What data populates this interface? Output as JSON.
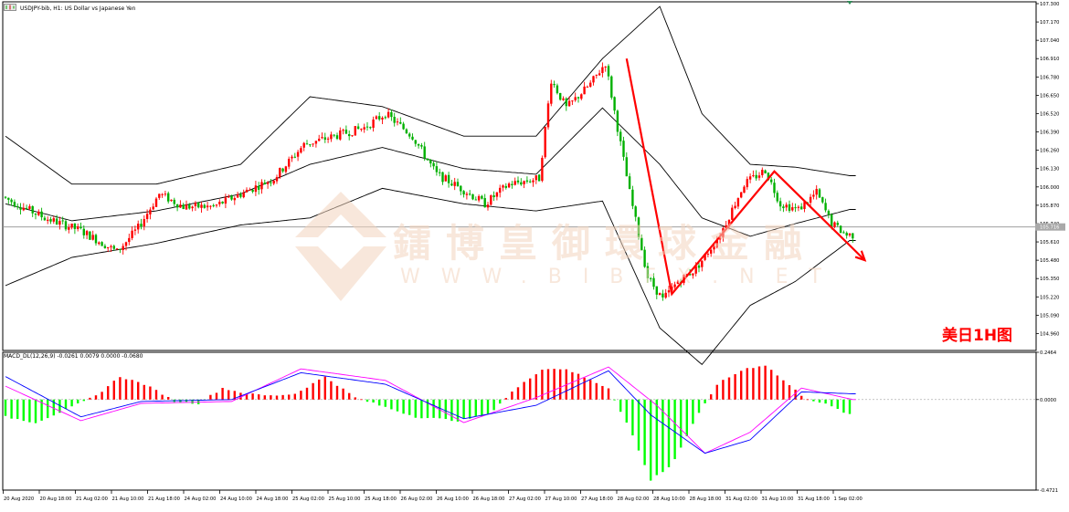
{
  "window": {
    "main_title": "USDJPY-bib, H1:  US Dollar vs Japanese Yen",
    "indicator_title": "MACD_DL(12,26,9) -0.0261 0.0079 0.0000 -0.0680",
    "annotation": "美日1H图"
  },
  "watermark": {
    "chinese": "鐳博皇御環球金融",
    "english": "WWW.BIBFX.NET"
  },
  "colors": {
    "bull_candle": "#ff0000",
    "bear_candle": "#00b000",
    "bollinger": "#000000",
    "macd_positive": "#ff0000",
    "macd_negative": "#00ff00",
    "signal_line": "#ff00ff",
    "macd_line": "#0000ff",
    "trend_arrows": "#ff0000",
    "bid_line": "#909090"
  },
  "chart_data": [
    {
      "type": "candlestick",
      "title": "USDJPY-bib, H1:  US Dollar vs Japanese Yen",
      "overlays": [
        "Bollinger Bands"
      ],
      "ylim": [
        104.84,
        107.3
      ],
      "current_price": 105.716,
      "y_ticks": [
        "107.300",
        "107.170",
        "107.040",
        "106.910",
        "106.780",
        "106.650",
        "106.520",
        "106.390",
        "106.260",
        "106.130",
        "106.000",
        "105.870",
        "105.740",
        "105.610",
        "105.480",
        "105.350",
        "105.220",
        "105.090",
        "104.960"
      ],
      "x_ticks": [
        "20 Aug 2020",
        "20 Aug 18:00",
        "21 Aug 02:00",
        "21 Aug 10:00",
        "21 Aug 18:00",
        "24 Aug 02:00",
        "24 Aug 10:00",
        "24 Aug 18:00",
        "25 Aug 02:00",
        "25 Aug 10:00",
        "25 Aug 18:00",
        "26 Aug 02:00",
        "26 Aug 10:00",
        "26 Aug 18:00",
        "27 Aug 02:00",
        "27 Aug 10:00",
        "27 Aug 18:00",
        "28 Aug 02:00",
        "28 Aug 10:00",
        "28 Aug 18:00",
        "31 Aug 02:00",
        "31 Aug 10:00",
        "31 Aug 18:00",
        "1 Sep 02:00"
      ],
      "close_path": [
        [
          0,
          105.93
        ],
        [
          14,
          105.78
        ],
        [
          26,
          105.69
        ],
        [
          38,
          105.54
        ],
        [
          45,
          105.71
        ],
        [
          52,
          105.95
        ],
        [
          60,
          105.86
        ],
        [
          70,
          105.86
        ],
        [
          80,
          105.96
        ],
        [
          90,
          106.06
        ],
        [
          100,
          106.3
        ],
        [
          110,
          106.36
        ],
        [
          120,
          106.42
        ],
        [
          127,
          106.52
        ],
        [
          136,
          106.36
        ],
        [
          144,
          106.09
        ],
        [
          152,
          105.99
        ],
        [
          160,
          105.88
        ],
        [
          168,
          106.02
        ],
        [
          178,
          106.06
        ],
        [
          182,
          106.76
        ],
        [
          187,
          106.56
        ],
        [
          195,
          106.73
        ],
        [
          200,
          106.88
        ],
        [
          208,
          105.96
        ],
        [
          214,
          105.36
        ],
        [
          219,
          105.2
        ],
        [
          224,
          105.33
        ],
        [
          230,
          105.42
        ],
        [
          238,
          105.66
        ],
        [
          246,
          106.02
        ],
        [
          253,
          106.12
        ],
        [
          258,
          105.88
        ],
        [
          264,
          105.84
        ],
        [
          270,
          105.96
        ],
        [
          275,
          105.74
        ],
        [
          280,
          105.66
        ]
      ],
      "bollinger_upper": [
        [
          0,
          106.36
        ],
        [
          22,
          106.02
        ],
        [
          50,
          106.02
        ],
        [
          78,
          106.16
        ],
        [
          101,
          106.64
        ],
        [
          125,
          106.57
        ],
        [
          152,
          106.36
        ],
        [
          176,
          106.36
        ],
        [
          198,
          106.91
        ],
        [
          217,
          107.28
        ],
        [
          231,
          106.52
        ],
        [
          247,
          106.16
        ],
        [
          262,
          106.14
        ],
        [
          280,
          106.08
        ]
      ],
      "bollinger_middle": [
        [
          0,
          105.88
        ],
        [
          22,
          105.76
        ],
        [
          50,
          105.83
        ],
        [
          78,
          105.95
        ],
        [
          101,
          106.16
        ],
        [
          125,
          106.28
        ],
        [
          152,
          106.13
        ],
        [
          176,
          106.09
        ],
        [
          198,
          106.56
        ],
        [
          217,
          106.16
        ],
        [
          231,
          105.78
        ],
        [
          247,
          105.65
        ],
        [
          262,
          105.74
        ],
        [
          280,
          105.84
        ]
      ],
      "bollinger_lower": [
        [
          0,
          105.3
        ],
        [
          22,
          105.5
        ],
        [
          50,
          105.6
        ],
        [
          78,
          105.73
        ],
        [
          101,
          105.78
        ],
        [
          125,
          105.99
        ],
        [
          152,
          105.88
        ],
        [
          176,
          105.83
        ],
        [
          198,
          105.9
        ],
        [
          217,
          105.0
        ],
        [
          231,
          104.74
        ],
        [
          247,
          105.16
        ],
        [
          262,
          105.33
        ],
        [
          280,
          105.62
        ]
      ],
      "annotations": [
        {
          "type": "trend_arrow",
          "points": [
            [
              206,
              106.91
            ],
            [
              221,
              105.24
            ],
            [
              255,
              106.11
            ],
            [
              285,
              105.48
            ]
          ]
        }
      ]
    },
    {
      "type": "bar",
      "title": "MACD_DL(12,26,9) -0.0261 0.0079 0.0000 -0.0680",
      "ylim": [
        -0.4721,
        0.2464
      ],
      "y_ticks": [
        "0.2464",
        "0.0000",
        "-0.4721"
      ],
      "histogram_path": [
        [
          0,
          -0.09
        ],
        [
          10,
          -0.12
        ],
        [
          22,
          -0.04
        ],
        [
          30,
          0.02
        ],
        [
          38,
          0.12
        ],
        [
          46,
          0.08
        ],
        [
          52,
          0.03
        ],
        [
          56,
          -0.01
        ],
        [
          64,
          -0.02
        ],
        [
          72,
          0.06
        ],
        [
          80,
          0.03
        ],
        [
          88,
          0.02
        ],
        [
          96,
          0.03
        ],
        [
          106,
          0.12
        ],
        [
          116,
          0.01
        ],
        [
          126,
          -0.04
        ],
        [
          136,
          -0.09
        ],
        [
          150,
          -0.11
        ],
        [
          160,
          -0.08
        ],
        [
          168,
          0.04
        ],
        [
          178,
          0.16
        ],
        [
          186,
          0.16
        ],
        [
          194,
          0.1
        ],
        [
          200,
          0.06
        ],
        [
          207,
          -0.15
        ],
        [
          214,
          -0.42
        ],
        [
          221,
          -0.34
        ],
        [
          229,
          -0.1
        ],
        [
          236,
          0.08
        ],
        [
          245,
          0.16
        ],
        [
          252,
          0.18
        ],
        [
          258,
          0.1
        ],
        [
          265,
          0.01
        ],
        [
          273,
          -0.03
        ],
        [
          280,
          -0.08
        ]
      ],
      "macd_line": [
        [
          0,
          0.12
        ],
        [
          25,
          -0.09
        ],
        [
          45,
          -0.01
        ],
        [
          75,
          0.0
        ],
        [
          98,
          0.14
        ],
        [
          126,
          0.08
        ],
        [
          152,
          -0.1
        ],
        [
          176,
          -0.03
        ],
        [
          200,
          0.15
        ],
        [
          214,
          -0.08
        ],
        [
          232,
          -0.28
        ],
        [
          247,
          -0.21
        ],
        [
          264,
          0.04
        ],
        [
          281,
          0.03
        ]
      ],
      "signal_line": [
        [
          0,
          0.07
        ],
        [
          25,
          -0.11
        ],
        [
          45,
          -0.02
        ],
        [
          75,
          -0.01
        ],
        [
          98,
          0.16
        ],
        [
          126,
          0.1
        ],
        [
          152,
          -0.12
        ],
        [
          176,
          0.01
        ],
        [
          200,
          0.17
        ],
        [
          216,
          -0.03
        ],
        [
          232,
          -0.28
        ],
        [
          247,
          -0.17
        ],
        [
          264,
          0.06
        ],
        [
          281,
          0.0
        ]
      ]
    }
  ]
}
